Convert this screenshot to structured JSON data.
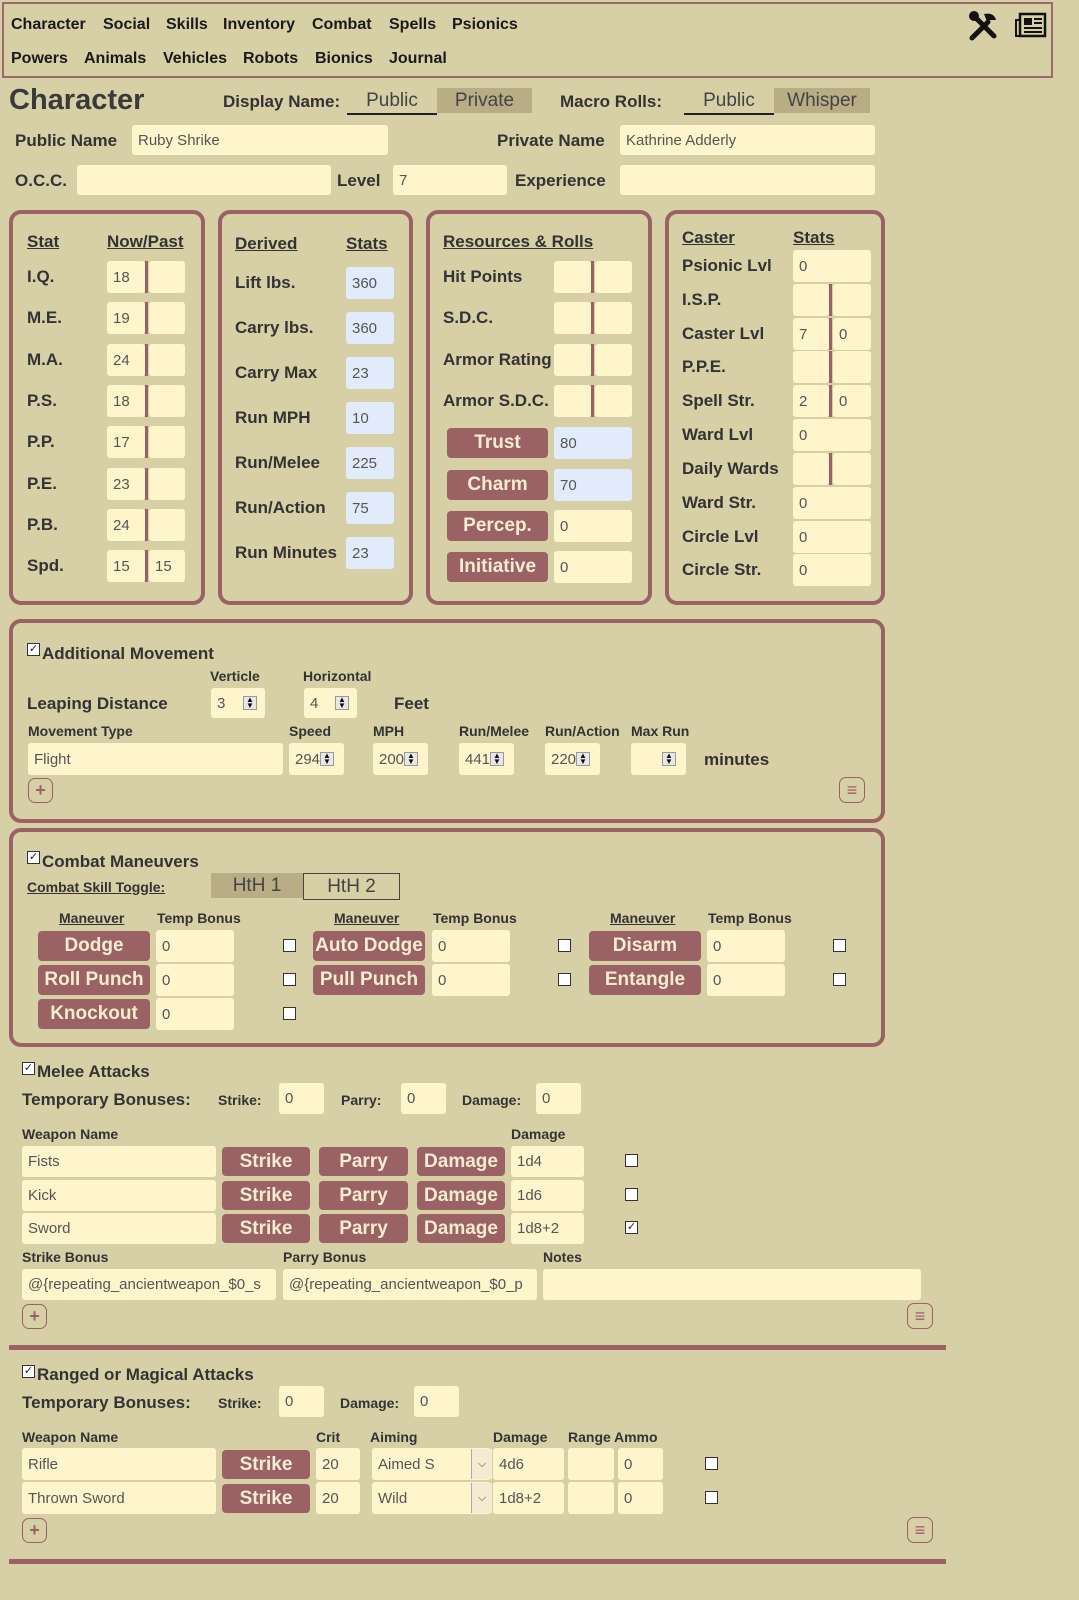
{
  "nav": {
    "row1": [
      "Character",
      "Social",
      "Skills",
      "Inventory",
      "Combat",
      "Spells",
      "Psionics"
    ],
    "row2": [
      "Powers",
      "Animals",
      "Vehicles",
      "Robots",
      "Bionics",
      "Journal"
    ],
    "icons": [
      "tools-icon",
      "newspaper-icon"
    ]
  },
  "header": {
    "title": "Character",
    "display_name_label": "Display Name:",
    "display_name_options": [
      "Public",
      "Private"
    ],
    "display_name_selected": "Public",
    "macro_label": "Macro Rolls:",
    "macro_options": [
      "Public",
      "Whisper"
    ],
    "macro_selected": "Public",
    "public_name_label": "Public Name",
    "public_name": "Ruby Shrike",
    "private_name_label": "Private Name",
    "private_name": "Kathrine Adderly",
    "occ_label": "O.C.C.",
    "occ": "",
    "level_label": "Level",
    "level": "7",
    "experience_label": "Experience",
    "experience": ""
  },
  "stats": {
    "headers": [
      "Stat",
      "Now/Past"
    ],
    "rows": [
      {
        "label": "I.Q.",
        "now": "18",
        "past": ""
      },
      {
        "label": "M.E.",
        "now": "19",
        "past": ""
      },
      {
        "label": "M.A.",
        "now": "24",
        "past": ""
      },
      {
        "label": "P.S.",
        "now": "18",
        "past": ""
      },
      {
        "label": "P.P.",
        "now": "17",
        "past": ""
      },
      {
        "label": "P.E.",
        "now": "23",
        "past": ""
      },
      {
        "label": "P.B.",
        "now": "24",
        "past": ""
      },
      {
        "label": "Spd.",
        "now": "15",
        "past": "15"
      }
    ]
  },
  "derived": {
    "headers": [
      "Derived",
      "Stats"
    ],
    "rows": [
      {
        "label": "Lift lbs.",
        "value": "360"
      },
      {
        "label": "Carry lbs.",
        "value": "360"
      },
      {
        "label": "Carry Max",
        "value": "23"
      },
      {
        "label": "Run MPH",
        "value": "10"
      },
      {
        "label": "Run/Melee",
        "value": "225"
      },
      {
        "label": "Run/Action",
        "value": "75"
      },
      {
        "label": "Run Minutes",
        "value": "23"
      }
    ]
  },
  "resources": {
    "headers": [
      "Resources &",
      "Rolls"
    ],
    "rows": [
      {
        "label": "Hit Points",
        "a": "",
        "b": ""
      },
      {
        "label": "S.D.C.",
        "a": "",
        "b": ""
      },
      {
        "label": "Armor Rating",
        "a": "",
        "b": ""
      },
      {
        "label": "Armor S.D.C.",
        "a": "",
        "b": ""
      }
    ],
    "rolls": [
      {
        "label": "Trust",
        "value": "80",
        "computed": true
      },
      {
        "label": "Charm",
        "value": "70",
        "computed": true
      },
      {
        "label": "Percep.",
        "value": "0",
        "computed": false
      },
      {
        "label": "Initiative",
        "value": "0",
        "computed": false
      }
    ]
  },
  "caster": {
    "headers": [
      "Caster",
      "Stats"
    ],
    "rows": [
      {
        "label": "Psionic Lvl",
        "values": [
          "0"
        ]
      },
      {
        "label": "I.S.P.",
        "values": [
          "",
          ""
        ]
      },
      {
        "label": "Caster Lvl",
        "values": [
          "7",
          "0"
        ]
      },
      {
        "label": "P.P.E.",
        "values": [
          "",
          ""
        ]
      },
      {
        "label": "Spell Str.",
        "values": [
          "2",
          "0"
        ]
      },
      {
        "label": "Ward Lvl",
        "values": [
          "0"
        ]
      },
      {
        "label": "Daily Wards",
        "values": [
          "",
          ""
        ]
      },
      {
        "label": "Ward Str.",
        "values": [
          "0"
        ]
      },
      {
        "label": "Circle Lvl",
        "values": [
          "0"
        ]
      },
      {
        "label": "Circle Str.",
        "values": [
          "0"
        ]
      }
    ]
  },
  "movement": {
    "title": "Additional Movement",
    "checked": true,
    "verticle_label": "Verticle",
    "horizontal_label": "Horizontal",
    "leaping_label": "Leaping Distance",
    "verticle": "3",
    "horizontal": "4",
    "feet_label": "Feet",
    "columns": [
      "Movement Type",
      "Speed",
      "MPH",
      "Run/Melee",
      "Run/Action",
      "Max Run"
    ],
    "row": {
      "type": "Flight",
      "speed": "294",
      "mph": "200",
      "run_melee": "441",
      "run_action": "220",
      "max_run": ""
    },
    "minutes_label": "minutes",
    "add": "+",
    "menu": "≡"
  },
  "combat": {
    "title": "Combat Maneuvers",
    "checked": true,
    "toggle_label": "Combat Skill Toggle:",
    "toggle_options": [
      "HtH 1",
      "HtH 2"
    ],
    "toggle_selected": "HtH 2",
    "col_headers": [
      "Maneuver",
      "Temp Bonus"
    ],
    "columns": [
      [
        {
          "label": "Dodge",
          "bonus": "0",
          "checked": false
        },
        {
          "label": "Roll Punch",
          "bonus": "0",
          "checked": false
        },
        {
          "label": "Knockout",
          "bonus": "0",
          "checked": false
        }
      ],
      [
        {
          "label": "Auto Dodge",
          "bonus": "0",
          "checked": false
        },
        {
          "label": "Pull Punch",
          "bonus": "0",
          "checked": false
        }
      ],
      [
        {
          "label": "Disarm",
          "bonus": "0",
          "checked": false
        },
        {
          "label": "Entangle",
          "bonus": "0",
          "checked": false
        }
      ]
    ]
  },
  "melee": {
    "title": "Melee Attacks",
    "checked": true,
    "temp_label": "Temporary Bonuses:",
    "strike_label": "Strike:",
    "strike": "0",
    "parry_label": "Parry:",
    "parry": "0",
    "damage_label": "Damage:",
    "damage": "0",
    "weapon_header": "Weapon Name",
    "damage_header": "Damage",
    "button_labels": [
      "Strike",
      "Parry",
      "Damage"
    ],
    "weapons": [
      {
        "name": "Fists",
        "damage": "1d4",
        "checked": false
      },
      {
        "name": "Kick",
        "damage": "1d6",
        "checked": false
      },
      {
        "name": "Sword",
        "damage": "1d8+2",
        "checked": true
      }
    ],
    "strike_bonus_label": "Strike Bonus",
    "parry_bonus_label": "Parry Bonus",
    "notes_label": "Notes",
    "strike_bonus": "@{repeating_ancientweapon_$0_s",
    "parry_bonus": "@{repeating_ancientweapon_$0_p",
    "notes": "",
    "add": "+",
    "menu": "≡"
  },
  "ranged": {
    "title": "Ranged or Magical Attacks",
    "checked": true,
    "temp_label": "Temporary Bonuses:",
    "strike_label": "Strike:",
    "strike": "0",
    "damage_label": "Damage:",
    "damage": "0",
    "headers": [
      "Weapon Name",
      "Crit",
      "Aiming",
      "Damage",
      "Range",
      "Ammo"
    ],
    "strike_button": "Strike",
    "weapons": [
      {
        "name": "Rifle",
        "crit": "20",
        "aiming": "Aimed S",
        "damage": "4d6",
        "range": "",
        "ammo": "0",
        "checked": false
      },
      {
        "name": "Thrown Sword",
        "crit": "20",
        "aiming": "Wild",
        "damage": "1d8+2",
        "range": "",
        "ammo": "0",
        "checked": false
      }
    ],
    "add": "+",
    "menu": "≡"
  },
  "colors": {
    "background": "#d7cfa6",
    "accent": "#9b6266",
    "input": "#fff5cc",
    "computed_input": "#e2ebfb"
  }
}
